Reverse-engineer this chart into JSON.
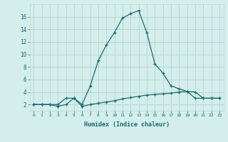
{
  "title": "",
  "xlabel": "Humidex (Indice chaleur)",
  "ylabel": "",
  "bg_color": "#d4eeec",
  "grid_color": "#b8d8d5",
  "line_color": "#1a6b6b",
  "ylim": [
    1,
    18
  ],
  "xlim": [
    -0.5,
    23.5
  ],
  "line1_x": [
    0,
    1,
    2,
    3,
    4,
    5,
    6,
    7,
    8,
    9,
    10,
    11,
    12,
    13,
    14,
    15,
    16,
    17,
    18,
    19,
    20,
    21,
    22,
    23
  ],
  "line1_y": [
    2.0,
    2.0,
    2.0,
    2.0,
    3.0,
    3.0,
    2.0,
    5.0,
    9.0,
    11.5,
    13.5,
    15.8,
    16.5,
    17.0,
    13.5,
    8.5,
    7.0,
    5.0,
    4.5,
    4.1,
    4.0,
    3.0,
    3.0,
    3.0
  ],
  "line2_x": [
    0,
    1,
    2,
    3,
    4,
    5,
    6,
    7,
    8,
    9,
    10,
    11,
    12,
    13,
    14,
    15,
    16,
    17,
    18,
    19,
    20,
    21,
    22,
    23
  ],
  "line2_y": [
    2.0,
    2.0,
    2.0,
    1.7,
    2.0,
    3.0,
    1.7,
    2.0,
    2.2,
    2.4,
    2.6,
    2.9,
    3.1,
    3.3,
    3.5,
    3.6,
    3.7,
    3.8,
    4.0,
    4.1,
    3.0,
    3.0,
    3.0,
    3.0
  ],
  "yticks": [
    2,
    4,
    6,
    8,
    10,
    12,
    14,
    16
  ],
  "ytick_labels": [
    "2",
    "4",
    "6",
    "8",
    "10",
    "12",
    "14",
    "16"
  ]
}
